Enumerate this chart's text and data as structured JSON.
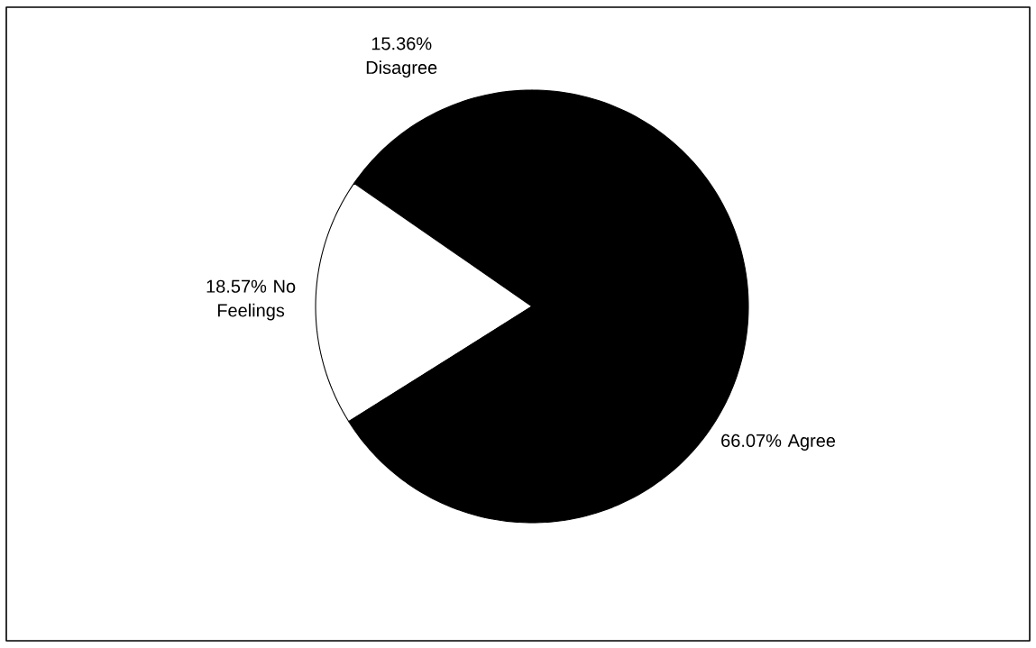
{
  "chart_data": {
    "type": "pie",
    "categories": [
      "Disagree",
      "No Feelings",
      "Agree"
    ],
    "values": [
      15.36,
      18.57,
      66.07
    ],
    "value_labels": [
      "15.36%",
      "18.57%",
      "66.07%"
    ],
    "colors": [
      "#000000",
      "#ffffff",
      "#000000"
    ]
  }
}
